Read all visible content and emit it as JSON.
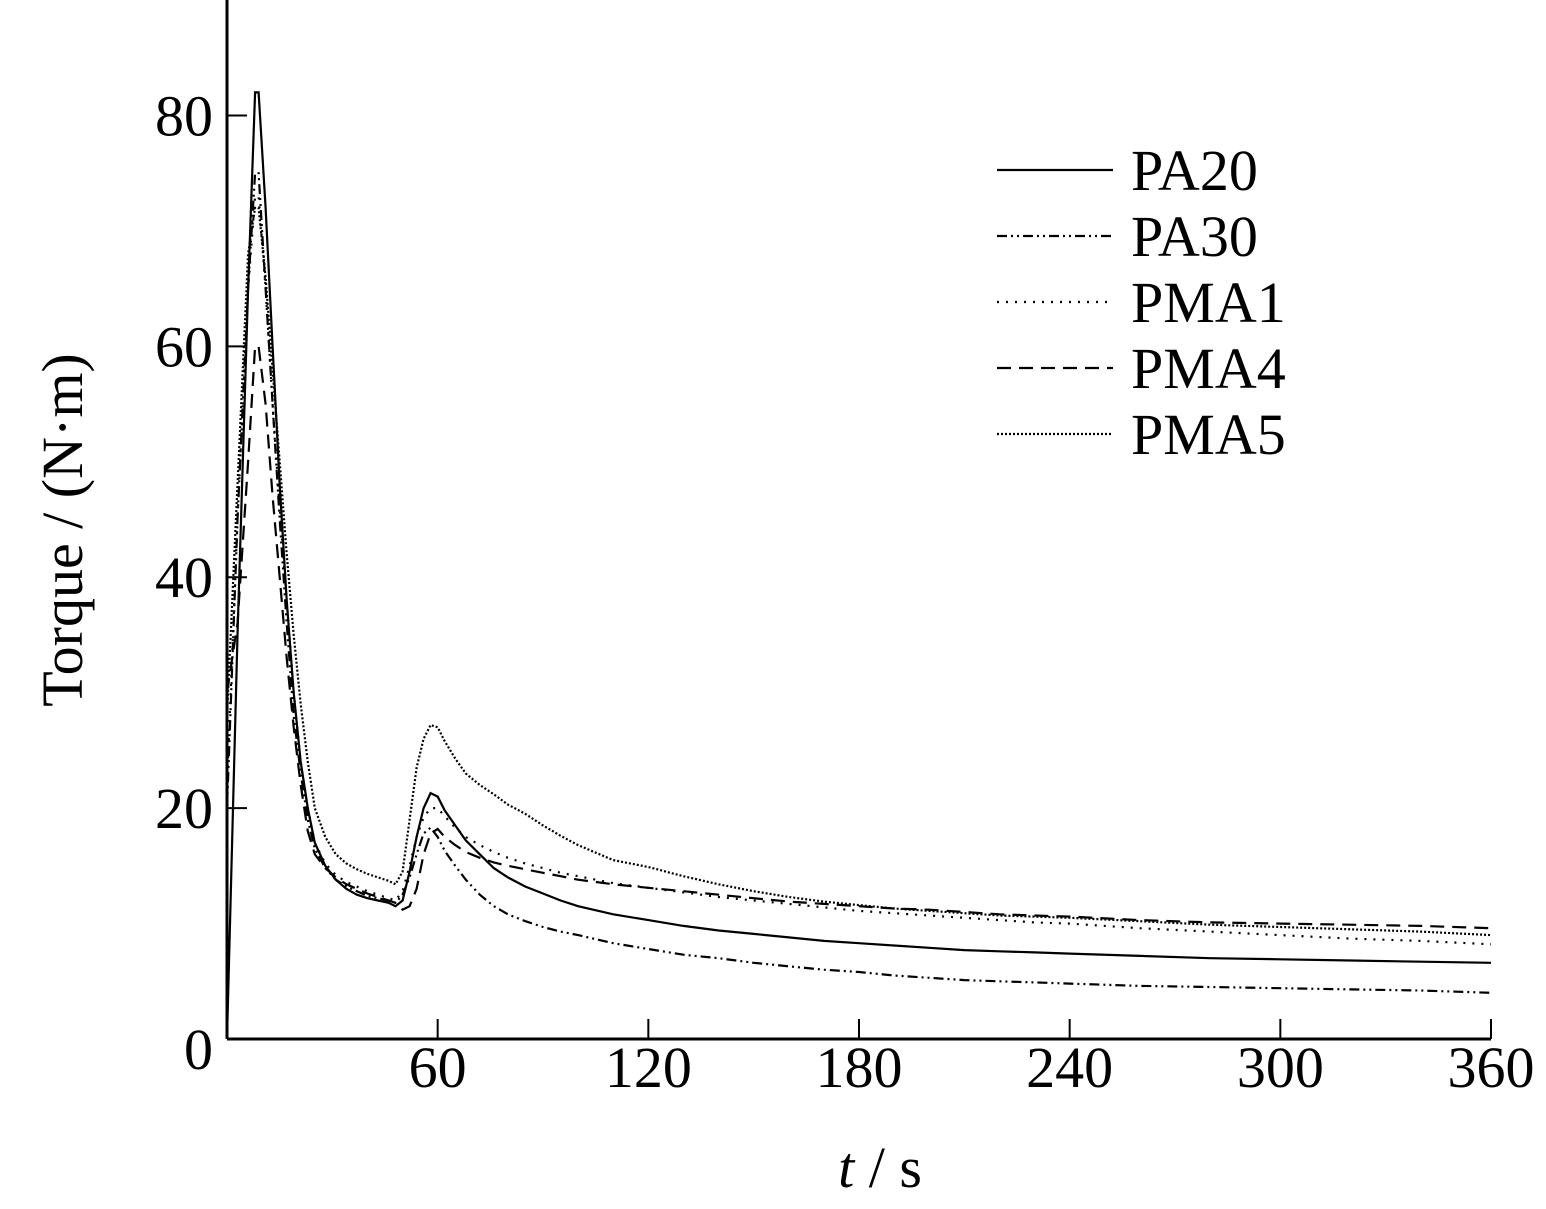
{
  "chart_data": {
    "type": "line",
    "xlabel_italic": "t",
    "xlabel_rest": " / s",
    "ylabel": "Torque / (N·m)",
    "xlim": [
      0,
      360
    ],
    "ylim": [
      0,
      90
    ],
    "xticks": [
      60,
      120,
      180,
      240,
      300,
      360
    ],
    "yticks": [
      0,
      20,
      40,
      60,
      80
    ],
    "grid": false,
    "legend_position": "top-right",
    "series": [
      {
        "name": "PA20",
        "style": "solid",
        "points": [
          [
            0,
            0
          ],
          [
            3,
            35
          ],
          [
            6,
            65
          ],
          [
            8,
            82
          ],
          [
            9,
            82
          ],
          [
            11,
            72
          ],
          [
            13,
            60
          ],
          [
            15,
            48
          ],
          [
            17,
            38
          ],
          [
            19,
            30
          ],
          [
            21,
            24
          ],
          [
            23,
            20
          ],
          [
            25,
            17
          ],
          [
            28,
            15
          ],
          [
            31,
            13.8
          ],
          [
            34,
            13
          ],
          [
            37,
            12.5
          ],
          [
            40,
            12.2
          ],
          [
            43,
            12
          ],
          [
            46,
            11.8
          ],
          [
            48,
            11.5
          ],
          [
            50,
            12
          ],
          [
            52,
            14.5
          ],
          [
            54,
            17.5
          ],
          [
            56,
            20
          ],
          [
            58,
            21.3
          ],
          [
            60,
            21
          ],
          [
            62,
            19.8
          ],
          [
            65,
            18.5
          ],
          [
            68,
            17.2
          ],
          [
            72,
            16
          ],
          [
            76,
            14.8
          ],
          [
            80,
            14
          ],
          [
            85,
            13.2
          ],
          [
            90,
            12.6
          ],
          [
            95,
            12
          ],
          [
            100,
            11.5
          ],
          [
            110,
            10.8
          ],
          [
            120,
            10.3
          ],
          [
            130,
            9.8
          ],
          [
            140,
            9.4
          ],
          [
            150,
            9.1
          ],
          [
            160,
            8.8
          ],
          [
            170,
            8.5
          ],
          [
            180,
            8.3
          ],
          [
            190,
            8.1
          ],
          [
            200,
            7.9
          ],
          [
            210,
            7.7
          ],
          [
            220,
            7.6
          ],
          [
            230,
            7.5
          ],
          [
            240,
            7.4
          ],
          [
            260,
            7.2
          ],
          [
            280,
            7.0
          ],
          [
            300,
            6.9
          ],
          [
            320,
            6.8
          ],
          [
            340,
            6.7
          ],
          [
            360,
            6.6
          ]
        ]
      },
      {
        "name": "PA30",
        "style": "dashdot",
        "points": [
          [
            0,
            20
          ],
          [
            3,
            45
          ],
          [
            6,
            65
          ],
          [
            8,
            75
          ],
          [
            9,
            75
          ],
          [
            11,
            65
          ],
          [
            13,
            55
          ],
          [
            15,
            45
          ],
          [
            17,
            36
          ],
          [
            19,
            28
          ],
          [
            21,
            23
          ],
          [
            23,
            19
          ],
          [
            25,
            16.5
          ],
          [
            28,
            14.8
          ],
          [
            31,
            13.8
          ],
          [
            34,
            13.2
          ],
          [
            37,
            12.8
          ],
          [
            40,
            12.4
          ],
          [
            43,
            12.2
          ],
          [
            46,
            12
          ],
          [
            48,
            11.8
          ],
          [
            50,
            12.5
          ],
          [
            52,
            14
          ],
          [
            54,
            16
          ],
          [
            56,
            17.8
          ],
          [
            58,
            18.3
          ],
          [
            60,
            17.5
          ],
          [
            62,
            16.3
          ],
          [
            65,
            15
          ],
          [
            68,
            13.8
          ],
          [
            72,
            12.5
          ],
          [
            76,
            11.5
          ],
          [
            80,
            10.8
          ],
          [
            85,
            10.2
          ],
          [
            90,
            9.7
          ],
          [
            95,
            9.3
          ],
          [
            100,
            9
          ],
          [
            110,
            8.3
          ],
          [
            120,
            7.8
          ],
          [
            130,
            7.3
          ],
          [
            140,
            7
          ],
          [
            150,
            6.6
          ],
          [
            160,
            6.3
          ],
          [
            170,
            6
          ],
          [
            180,
            5.8
          ],
          [
            190,
            5.5
          ],
          [
            200,
            5.3
          ],
          [
            210,
            5.1
          ],
          [
            220,
            5
          ],
          [
            230,
            4.9
          ],
          [
            240,
            4.8
          ],
          [
            260,
            4.6
          ],
          [
            280,
            4.5
          ],
          [
            300,
            4.4
          ],
          [
            320,
            4.3
          ],
          [
            340,
            4.2
          ],
          [
            360,
            4.0
          ]
        ]
      },
      {
        "name": "PMA1",
        "style": "dotted",
        "points": [
          [
            0,
            22
          ],
          [
            3,
            45
          ],
          [
            6,
            65
          ],
          [
            8,
            73
          ],
          [
            9,
            73
          ],
          [
            11,
            65
          ],
          [
            13,
            55
          ],
          [
            15,
            46
          ],
          [
            17,
            38
          ],
          [
            19,
            30
          ],
          [
            21,
            24
          ],
          [
            23,
            20
          ],
          [
            25,
            17
          ],
          [
            28,
            15.2
          ],
          [
            31,
            14.2
          ],
          [
            34,
            13.6
          ],
          [
            37,
            13.2
          ],
          [
            40,
            12.8
          ],
          [
            43,
            12.5
          ],
          [
            46,
            12.2
          ],
          [
            48,
            12
          ],
          [
            50,
            12.8
          ],
          [
            52,
            15
          ],
          [
            54,
            17.5
          ],
          [
            56,
            19.2
          ],
          [
            58,
            20
          ],
          [
            60,
            20
          ],
          [
            62,
            19.3
          ],
          [
            65,
            18.3
          ],
          [
            68,
            17.5
          ],
          [
            72,
            16.8
          ],
          [
            76,
            16.2
          ],
          [
            80,
            15.7
          ],
          [
            85,
            15.2
          ],
          [
            90,
            14.8
          ],
          [
            95,
            14.4
          ],
          [
            100,
            14.1
          ],
          [
            110,
            13.5
          ],
          [
            120,
            13.1
          ],
          [
            130,
            12.7
          ],
          [
            140,
            12.3
          ],
          [
            150,
            12
          ],
          [
            160,
            11.7
          ],
          [
            170,
            11.4
          ],
          [
            180,
            11.1
          ],
          [
            190,
            10.9
          ],
          [
            200,
            10.7
          ],
          [
            210,
            10.5
          ],
          [
            220,
            10.3
          ],
          [
            230,
            10.1
          ],
          [
            240,
            10
          ],
          [
            260,
            9.6
          ],
          [
            280,
            9.3
          ],
          [
            300,
            9
          ],
          [
            320,
            8.7
          ],
          [
            340,
            8.5
          ],
          [
            360,
            8.2
          ]
        ]
      },
      {
        "name": "PMA4",
        "style": "dashed",
        "points": [
          [
            0,
            30
          ],
          [
            3,
            36
          ],
          [
            6,
            50
          ],
          [
            8,
            60
          ],
          [
            9,
            60
          ],
          [
            11,
            55
          ],
          [
            13,
            47
          ],
          [
            15,
            40
          ],
          [
            17,
            33
          ],
          [
            19,
            27
          ],
          [
            21,
            22
          ],
          [
            23,
            18
          ],
          [
            25,
            16
          ],
          [
            28,
            14.8
          ],
          [
            31,
            14
          ],
          [
            34,
            13.4
          ],
          [
            37,
            13
          ],
          [
            40,
            12.6
          ],
          [
            43,
            12.3
          ],
          [
            46,
            12
          ],
          [
            48,
            11.8
          ],
          [
            50,
            11.2
          ],
          [
            52,
            11.5
          ],
          [
            54,
            13
          ],
          [
            56,
            16
          ],
          [
            58,
            17.8
          ],
          [
            60,
            18.2
          ],
          [
            62,
            17.5
          ],
          [
            65,
            16.8
          ],
          [
            68,
            16.2
          ],
          [
            72,
            15.7
          ],
          [
            76,
            15.3
          ],
          [
            80,
            15
          ],
          [
            85,
            14.7
          ],
          [
            90,
            14.4
          ],
          [
            95,
            14.1
          ],
          [
            100,
            13.8
          ],
          [
            110,
            13.4
          ],
          [
            120,
            13.1
          ],
          [
            130,
            12.8
          ],
          [
            140,
            12.5
          ],
          [
            150,
            12.2
          ],
          [
            160,
            11.9
          ],
          [
            170,
            11.7
          ],
          [
            180,
            11.5
          ],
          [
            190,
            11.3
          ],
          [
            200,
            11.2
          ],
          [
            210,
            11
          ],
          [
            220,
            10.8
          ],
          [
            230,
            10.7
          ],
          [
            240,
            10.6
          ],
          [
            260,
            10.3
          ],
          [
            280,
            10.1
          ],
          [
            300,
            10
          ],
          [
            320,
            9.9
          ],
          [
            340,
            9.8
          ],
          [
            360,
            9.6
          ]
        ]
      },
      {
        "name": "PMA5",
        "style": "densedot",
        "points": [
          [
            0,
            28
          ],
          [
            3,
            48
          ],
          [
            6,
            68
          ],
          [
            8,
            72
          ],
          [
            9,
            72
          ],
          [
            11,
            66
          ],
          [
            13,
            58
          ],
          [
            15,
            50
          ],
          [
            17,
            42
          ],
          [
            19,
            35
          ],
          [
            21,
            29
          ],
          [
            23,
            24
          ],
          [
            25,
            20
          ],
          [
            28,
            17.5
          ],
          [
            31,
            16
          ],
          [
            34,
            15.2
          ],
          [
            37,
            14.7
          ],
          [
            40,
            14.3
          ],
          [
            43,
            14
          ],
          [
            46,
            13.7
          ],
          [
            48,
            13.4
          ],
          [
            50,
            14.5
          ],
          [
            52,
            19
          ],
          [
            54,
            23.5
          ],
          [
            56,
            26
          ],
          [
            58,
            27.2
          ],
          [
            60,
            27
          ],
          [
            62,
            25.8
          ],
          [
            65,
            24.3
          ],
          [
            68,
            23
          ],
          [
            72,
            22
          ],
          [
            76,
            21.2
          ],
          [
            80,
            20.3
          ],
          [
            85,
            19.5
          ],
          [
            90,
            18.5
          ],
          [
            95,
            17.6
          ],
          [
            100,
            16.8
          ],
          [
            110,
            15.5
          ],
          [
            120,
            14.9
          ],
          [
            130,
            14.1
          ],
          [
            140,
            13.4
          ],
          [
            150,
            12.8
          ],
          [
            160,
            12.3
          ],
          [
            170,
            11.9
          ],
          [
            180,
            11.6
          ],
          [
            190,
            11.3
          ],
          [
            200,
            11.1
          ],
          [
            210,
            10.9
          ],
          [
            220,
            10.7
          ],
          [
            230,
            10.6
          ],
          [
            240,
            10.5
          ],
          [
            260,
            10.2
          ],
          [
            280,
            9.9
          ],
          [
            300,
            9.7
          ],
          [
            320,
            9.5
          ],
          [
            340,
            9.3
          ],
          [
            360,
            9.0
          ]
        ]
      }
    ]
  },
  "styles": {
    "line_color": "#000000",
    "background": "#ffffff"
  }
}
